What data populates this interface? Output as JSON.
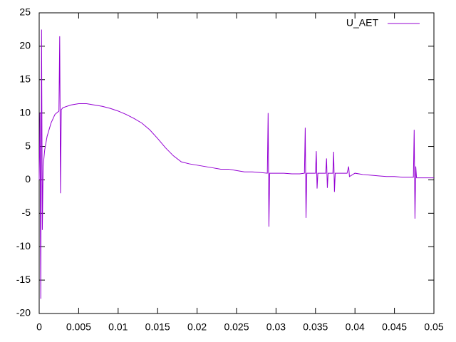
{
  "chart_data": {
    "type": "line",
    "x": [
      0,
      0.0001,
      0.0002,
      0.0003,
      0.0004,
      0.0005,
      0.0007,
      0.001,
      0.0015,
      0.002,
      0.0025,
      0.0026,
      0.0027,
      0.0028,
      0.003,
      0.004,
      0.005,
      0.006,
      0.007,
      0.008,
      0.009,
      0.01,
      0.011,
      0.012,
      0.013,
      0.014,
      0.015,
      0.016,
      0.017,
      0.018,
      0.019,
      0.02,
      0.021,
      0.022,
      0.023,
      0.024,
      0.025,
      0.026,
      0.027,
      0.028,
      0.0289,
      0.029,
      0.0291,
      0.0292,
      0.03,
      0.031,
      0.032,
      0.033,
      0.0336,
      0.0337,
      0.0338,
      0.0339,
      0.035,
      0.0351,
      0.0352,
      0.0353,
      0.0363,
      0.0364,
      0.0365,
      0.0366,
      0.0372,
      0.0373,
      0.0374,
      0.0375,
      0.039,
      0.0392,
      0.0393,
      0.04,
      0.041,
      0.042,
      0.043,
      0.044,
      0.045,
      0.046,
      0.0474,
      0.0475,
      0.0476,
      0.0477,
      0.0478,
      0.049,
      0.05
    ],
    "series": [
      {
        "name": "U_AET",
        "color": "#9400d3",
        "values": [
          0,
          10,
          -17.8,
          22.5,
          -7.5,
          2,
          4.5,
          6.5,
          8.5,
          9.8,
          10.3,
          21.5,
          -2,
          10.5,
          10.8,
          11.2,
          11.4,
          11.4,
          11.2,
          11,
          10.7,
          10.3,
          9.8,
          9.2,
          8.5,
          7.5,
          6.2,
          4.8,
          3.6,
          2.7,
          2.4,
          2.2,
          2,
          1.8,
          1.6,
          1.6,
          1.4,
          1.2,
          1.2,
          1.1,
          1,
          10,
          -7,
          1,
          1,
          1,
          0.9,
          0.9,
          1,
          7.8,
          -5.7,
          1,
          1,
          4.3,
          -1.3,
          1,
          1,
          3.2,
          -1.2,
          1,
          1,
          4.2,
          -1.8,
          1,
          1,
          2,
          0.5,
          1,
          0.8,
          0.7,
          0.6,
          0.5,
          0.5,
          0.4,
          0.4,
          7.5,
          -5.8,
          2,
          0.3,
          0.3,
          0.3
        ]
      }
    ],
    "xlim": [
      0,
      0.05
    ],
    "xticks": [
      0,
      0.005,
      0.01,
      0.015,
      0.02,
      0.025,
      0.03,
      0.035,
      0.04,
      0.045,
      0.05
    ],
    "ylim": [
      -20,
      25
    ],
    "yticks": [
      -20,
      -15,
      -10,
      -5,
      0,
      5,
      10,
      15,
      20,
      25
    ],
    "grid": false,
    "legend": "top-right"
  }
}
